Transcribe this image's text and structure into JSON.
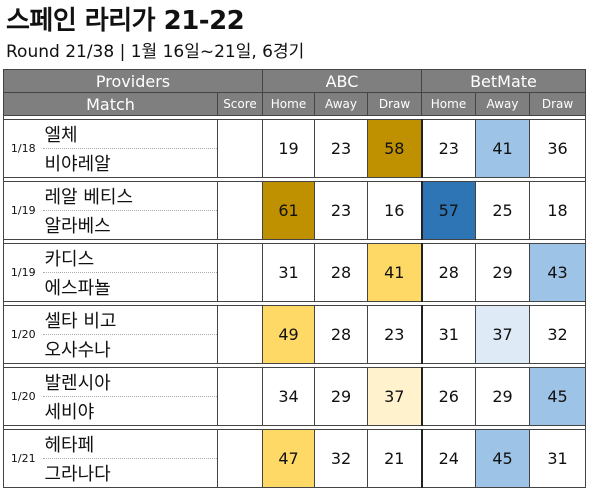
{
  "title": "스페인 라리가 21-22",
  "subtitle": "Round 21/38 | 1월 16일~21일, 6경기",
  "header": {
    "providers": "Providers",
    "match": "Match",
    "score": "Score",
    "groups": [
      "ABC",
      "BetMate"
    ],
    "subcols": [
      "Home",
      "Away",
      "Draw"
    ]
  },
  "colors": {
    "header_bg": "#7f7f7f",
    "dark_gold": "#bf9000",
    "light_gold": "#ffd966",
    "pale_gold": "#fff2cc",
    "dark_blue": "#2e75b6",
    "mid_blue": "#9dc3e6",
    "pale_blue": "#deebf7"
  },
  "matches": [
    {
      "date": "1/18",
      "home": "엘체",
      "away": "비야레알",
      "score": "",
      "abc": {
        "home": 19,
        "away": 23,
        "draw": 58
      },
      "abc_hl": {
        "draw": "dark_gold"
      },
      "betmate": {
        "home": 23,
        "away": 41,
        "draw": 36
      },
      "bm_hl": {
        "away": "mid_blue"
      }
    },
    {
      "date": "1/19",
      "home": "레알 베티스",
      "away": "알라베스",
      "score": "",
      "abc": {
        "home": 61,
        "away": 23,
        "draw": 16
      },
      "abc_hl": {
        "home": "dark_gold"
      },
      "betmate": {
        "home": 57,
        "away": 25,
        "draw": 18
      },
      "bm_hl": {
        "home": "dark_blue"
      }
    },
    {
      "date": "1/19",
      "home": "카디스",
      "away": "에스파뇰",
      "score": "",
      "abc": {
        "home": 31,
        "away": 28,
        "draw": 41
      },
      "abc_hl": {
        "draw": "light_gold"
      },
      "betmate": {
        "home": 28,
        "away": 29,
        "draw": 43
      },
      "bm_hl": {
        "draw": "mid_blue"
      }
    },
    {
      "date": "1/20",
      "home": "셀타 비고",
      "away": "오사수나",
      "score": "",
      "abc": {
        "home": 49,
        "away": 28,
        "draw": 23
      },
      "abc_hl": {
        "home": "light_gold"
      },
      "betmate": {
        "home": 31,
        "away": 37,
        "draw": 32
      },
      "bm_hl": {
        "away": "pale_blue"
      }
    },
    {
      "date": "1/20",
      "home": "발렌시아",
      "away": "세비야",
      "score": "",
      "abc": {
        "home": 34,
        "away": 29,
        "draw": 37
      },
      "abc_hl": {
        "draw": "pale_gold"
      },
      "betmate": {
        "home": 26,
        "away": 29,
        "draw": 45
      },
      "bm_hl": {
        "draw": "mid_blue"
      }
    },
    {
      "date": "1/21",
      "home": "헤타페",
      "away": "그라나다",
      "score": "",
      "abc": {
        "home": 47,
        "away": 32,
        "draw": 21
      },
      "abc_hl": {
        "home": "light_gold"
      },
      "betmate": {
        "home": 24,
        "away": 45,
        "draw": 31
      },
      "bm_hl": {
        "away": "mid_blue"
      }
    }
  ]
}
